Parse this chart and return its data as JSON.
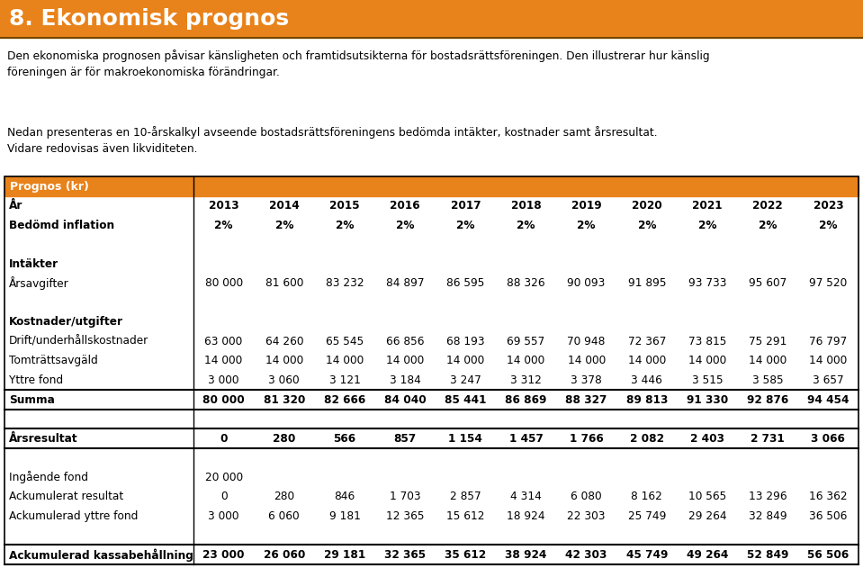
{
  "title": "8. Ekonomisk prognos",
  "orange": "#E8821A",
  "para1": "Den ekonomiska prognosen påvisar känsligheten och framtidsutsikterna för bostadsrättsföreningen. Den illustrerar hur känslig\nföreningen är för makroekonomiska förändringar.",
  "para2": "Nedan presenteras en 10-årskalkyl avseende bostadsrättsföreningens bedömda intäkter, kostnader samt årsresultat.\nVidare redovisas även likviditeten.",
  "table_header": "Prognos (kr)",
  "rows": [
    {
      "label": "År",
      "bold": true,
      "vbold": true,
      "values": [
        "2013",
        "2014",
        "2015",
        "2016",
        "2017",
        "2018",
        "2019",
        "2020",
        "2021",
        "2022",
        "2023"
      ],
      "border_top": false,
      "border_bottom": false
    },
    {
      "label": "Bedömd inflation",
      "bold": true,
      "vbold": true,
      "values": [
        "2%",
        "2%",
        "2%",
        "2%",
        "2%",
        "2%",
        "2%",
        "2%",
        "2%",
        "2%",
        "2%"
      ],
      "border_top": false,
      "border_bottom": false
    },
    {
      "label": "",
      "bold": false,
      "vbold": false,
      "values": [
        "",
        "",
        "",
        "",
        "",
        "",
        "",
        "",
        "",
        "",
        ""
      ],
      "border_top": false,
      "border_bottom": false
    },
    {
      "label": "Intäkter",
      "bold": true,
      "vbold": false,
      "values": [
        "",
        "",
        "",
        "",
        "",
        "",
        "",
        "",
        "",
        "",
        ""
      ],
      "border_top": false,
      "border_bottom": false
    },
    {
      "label": "Årsavgifter",
      "bold": false,
      "vbold": false,
      "values": [
        "80 000",
        "81 600",
        "83 232",
        "84 897",
        "86 595",
        "88 326",
        "90 093",
        "91 895",
        "93 733",
        "95 607",
        "97 520"
      ],
      "border_top": false,
      "border_bottom": false
    },
    {
      "label": "",
      "bold": false,
      "vbold": false,
      "values": [
        "",
        "",
        "",
        "",
        "",
        "",
        "",
        "",
        "",
        "",
        ""
      ],
      "border_top": false,
      "border_bottom": false
    },
    {
      "label": "Kostnader/utgifter",
      "bold": true,
      "vbold": false,
      "values": [
        "",
        "",
        "",
        "",
        "",
        "",
        "",
        "",
        "",
        "",
        ""
      ],
      "border_top": false,
      "border_bottom": false
    },
    {
      "label": "Drift/underhållskostnader",
      "bold": false,
      "vbold": false,
      "values": [
        "63 000",
        "64 260",
        "65 545",
        "66 856",
        "68 193",
        "69 557",
        "70 948",
        "72 367",
        "73 815",
        "75 291",
        "76 797"
      ],
      "border_top": false,
      "border_bottom": false
    },
    {
      "label": "Tomträttsavgäld",
      "bold": false,
      "vbold": false,
      "values": [
        "14 000",
        "14 000",
        "14 000",
        "14 000",
        "14 000",
        "14 000",
        "14 000",
        "14 000",
        "14 000",
        "14 000",
        "14 000"
      ],
      "border_top": false,
      "border_bottom": false
    },
    {
      "label": "Yttre fond",
      "bold": false,
      "vbold": false,
      "values": [
        "3 000",
        "3 060",
        "3 121",
        "3 184",
        "3 247",
        "3 312",
        "3 378",
        "3 446",
        "3 515",
        "3 585",
        "3 657"
      ],
      "border_top": false,
      "border_bottom": false
    },
    {
      "label": "Summa",
      "bold": true,
      "vbold": true,
      "values": [
        "80 000",
        "81 320",
        "82 666",
        "84 040",
        "85 441",
        "86 869",
        "88 327",
        "89 813",
        "91 330",
        "92 876",
        "94 454"
      ],
      "border_top": true,
      "border_bottom": true
    },
    {
      "label": "",
      "bold": false,
      "vbold": false,
      "values": [
        "",
        "",
        "",
        "",
        "",
        "",
        "",
        "",
        "",
        "",
        ""
      ],
      "border_top": false,
      "border_bottom": false
    },
    {
      "label": "Årsresultat",
      "bold": true,
      "vbold": true,
      "values": [
        "0",
        "280",
        "566",
        "857",
        "1 154",
        "1 457",
        "1 766",
        "2 082",
        "2 403",
        "2 731",
        "3 066"
      ],
      "border_top": true,
      "border_bottom": true
    },
    {
      "label": "",
      "bold": false,
      "vbold": false,
      "values": [
        "",
        "",
        "",
        "",
        "",
        "",
        "",
        "",
        "",
        "",
        ""
      ],
      "border_top": false,
      "border_bottom": false
    },
    {
      "label": "Ingående fond",
      "bold": false,
      "vbold": false,
      "values": [
        "20 000",
        "",
        "",
        "",
        "",
        "",
        "",
        "",
        "",
        "",
        ""
      ],
      "border_top": false,
      "border_bottom": false
    },
    {
      "label": "Ackumulerat resultat",
      "bold": false,
      "vbold": false,
      "values": [
        "0",
        "280",
        "846",
        "1 703",
        "2 857",
        "4 314",
        "6 080",
        "8 162",
        "10 565",
        "13 296",
        "16 362"
      ],
      "border_top": false,
      "border_bottom": false
    },
    {
      "label": "Ackumulerad yttre fond",
      "bold": false,
      "vbold": false,
      "values": [
        "3 000",
        "6 060",
        "9 181",
        "12 365",
        "15 612",
        "18 924",
        "22 303",
        "25 749",
        "29 264",
        "32 849",
        "36 506"
      ],
      "border_top": false,
      "border_bottom": false
    },
    {
      "label": "",
      "bold": false,
      "vbold": false,
      "values": [
        "",
        "",
        "",
        "",
        "",
        "",
        "",
        "",
        "",
        "",
        ""
      ],
      "border_top": false,
      "border_bottom": false
    },
    {
      "label": "Ackumulerad kassabehållning",
      "bold": true,
      "vbold": true,
      "values": [
        "23 000",
        "26 060",
        "29 181",
        "32 365",
        "35 612",
        "38 924",
        "42 303",
        "45 749",
        "49 264",
        "52 849",
        "56 506"
      ],
      "border_top": true,
      "border_bottom": true
    }
  ]
}
